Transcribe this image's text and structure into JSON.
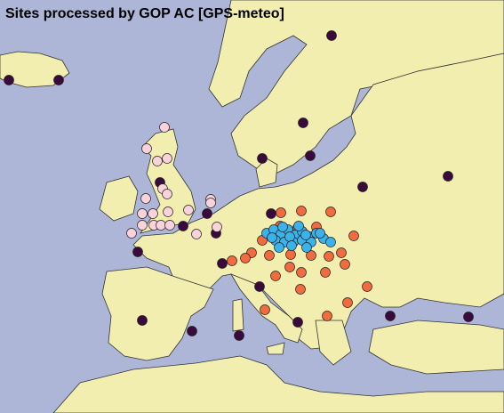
{
  "header": {
    "title": "Sites processed by GOP AC [GPS-meteo]"
  }
}
